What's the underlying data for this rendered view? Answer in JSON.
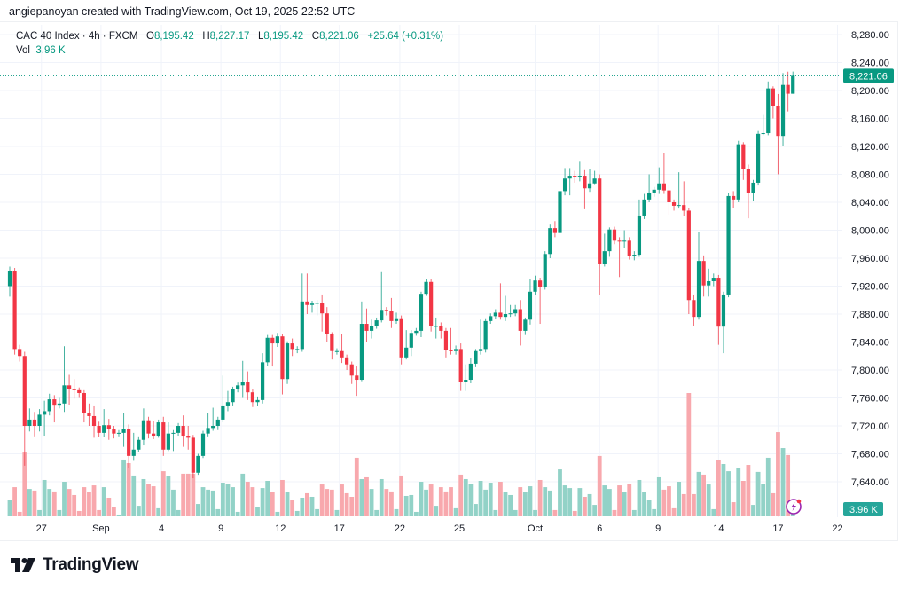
{
  "header": {
    "credit": "angiepanoyan created with TradingView.com, Oct 19, 2025 22:52 UTC",
    "symbol": "CAC 40 Index · 4h · FXCM",
    "o_label": "O",
    "o_value": "8,195.42",
    "h_label": "H",
    "h_value": "8,227.17",
    "l_label": "L",
    "l_value": "8,195.42",
    "c_label": "C",
    "c_value": "8,221.06",
    "change": "+25.64 (+0.31%)",
    "vol_label": "Vol",
    "vol_value": "3.96 K"
  },
  "footer": {
    "brand": "TradingView",
    "logo_icon": "tradingview-logo-icon"
  },
  "colors": {
    "up": "#089981",
    "down": "#F23645",
    "up_volume": "#92d2c7",
    "down_volume": "#f8a8ad",
    "grid": "#f0f3fa"
  },
  "chart_data": {
    "type": "candlestick",
    "title": "CAC 40 Index · 4h · FXCM",
    "ylim": [
      7600,
      8300
    ],
    "price_ticks": [
      "7,640.00",
      "7,680.00",
      "7,720.00",
      "7,760.00",
      "7,800.00",
      "7,840.00",
      "7,880.00",
      "7,920.00",
      "7,960.00",
      "8,000.00",
      "8,040.00",
      "8,080.00",
      "8,120.00",
      "8,160.00",
      "8,200.00",
      "8,240.00",
      "8,280.00"
    ],
    "price_tick_values": [
      7640,
      7680,
      7720,
      7760,
      7800,
      7840,
      7880,
      7920,
      7960,
      8000,
      8040,
      8080,
      8120,
      8160,
      8200,
      8240,
      8280
    ],
    "x_ticks": [
      {
        "label": "27",
        "index": 6.4
      },
      {
        "label": "Sep",
        "index": 18.4
      },
      {
        "label": "4",
        "index": 30.6
      },
      {
        "label": "9",
        "index": 42.6
      },
      {
        "label": "12",
        "index": 54.6
      },
      {
        "label": "17",
        "index": 66.5
      },
      {
        "label": "22",
        "index": 78.7
      },
      {
        "label": "25",
        "index": 90.7
      },
      {
        "label": "Oct",
        "index": 106
      },
      {
        "label": "6",
        "index": 119
      },
      {
        "label": "9",
        "index": 130.8
      },
      {
        "label": "14",
        "index": 143
      },
      {
        "label": "17",
        "index": 155
      },
      {
        "label": "22",
        "index": 167
      }
    ],
    "last_price": 8221.06,
    "last_price_label": "8,221.06",
    "last_volume_label": "3.96 K",
    "volume_unit": "K",
    "open": [
      7920,
      7942,
      7830,
      7820,
      7720,
      7729,
      7720,
      7736,
      7741,
      7758,
      7749,
      7752,
      7778,
      7773,
      7771,
      7767,
      7738,
      7734,
      7720,
      7710,
      7721,
      7715,
      7709,
      7710,
      7715,
      7677,
      7686,
      7700,
      7728,
      7709,
      7706,
      7725,
      7686,
      7709,
      7710,
      7720,
      7706,
      7703,
      7653,
      7677,
      7709,
      7717,
      7720,
      7729,
      7748,
      7754,
      7773,
      7778,
      7783,
      7768,
      7754,
      7757,
      7811,
      7846,
      7838,
      7848,
      7787,
      7838,
      7830,
      7830,
      7898,
      7893,
      7895,
      7896,
      7881,
      7851,
      7827,
      7827,
      7818,
      7808,
      7792,
      7786,
      7866,
      7856,
      7863,
      7871,
      7886,
      7885,
      7870,
      7874,
      7818,
      7832,
      7853,
      7856,
      7909,
      7926,
      7863,
      7863,
      7856,
      7828,
      7827,
      7830,
      7783,
      7786,
      7809,
      7827,
      7830,
      7870,
      7877,
      7882,
      7876,
      7880,
      7881,
      7887,
      7856,
      7872,
      7912,
      7928,
      7919,
      7966,
      8003,
      7996,
      8056,
      8074,
      8078,
      8077,
      8078,
      8060,
      8067,
      8074,
      7952,
      7970,
      8001,
      7985,
      7984,
      7985,
      7963,
      7965,
      8021,
      8044,
      8054,
      8058,
      8067,
      8057,
      8040,
      8035,
      8036,
      8028,
      7900,
      7876,
      7956,
      7921,
      7927,
      7932,
      7862,
      7908,
      8049,
      8044,
      8123,
      8087,
      8053,
      8068,
      8138,
      8139,
      8203,
      8178,
      8135,
      8208,
      8195.42
    ],
    "high": [
      7948,
      7946,
      7836,
      7826,
      7745,
      7740,
      7744,
      7756,
      7766,
      7764,
      7760,
      7834,
      7793,
      7787,
      7775,
      7771,
      7752,
      7748,
      7726,
      7744,
      7730,
      7720,
      7714,
      7738,
      7722,
      7710,
      7705,
      7745,
      7733,
      7727,
      7729,
      7733,
      7725,
      7714,
      7724,
      7735,
      7720,
      7707,
      7680,
      7713,
      7738,
      7746,
      7733,
      7792,
      7770,
      7776,
      7782,
      7813,
      7798,
      7772,
      7762,
      7824,
      7850,
      7850,
      7853,
      7852,
      7841,
      7845,
      7834,
      7938,
      7938,
      7899,
      7900,
      7908,
      7890,
      7854,
      7831,
      7852,
      7822,
      7812,
      7805,
      7898,
      7888,
      7872,
      7875,
      7940,
      7890,
      7903,
      7882,
      7878,
      7857,
      7857,
      7860,
      7912,
      7930,
      7930,
      7875,
      7868,
      7860,
      7860,
      7835,
      7838,
      7808,
      7817,
      7830,
      7872,
      7874,
      7881,
      7887,
      7924,
      7906,
      7893,
      7893,
      7900,
      7875,
      7930,
      7935,
      7932,
      7970,
      8008,
      8013,
      8060,
      8089,
      8089,
      8085,
      8098,
      8086,
      8087,
      8085,
      8080,
      7995,
      8004,
      8005,
      7990,
      8000,
      7990,
      7970,
      8044,
      8052,
      8080,
      8062,
      8090,
      8111,
      8065,
      8044,
      8083,
      8070,
      8032,
      7908,
      7997,
      7964,
      7945,
      7938,
      7936,
      7912,
      8053,
      8056,
      8128,
      8126,
      8094,
      8072,
      8142,
      8165,
      8213,
      8206,
      8195,
      8225,
      8227,
      8227.17
    ],
    "low": [
      7905,
      7822,
      7812,
      7663,
      7712,
      7705,
      7712,
      7706,
      7735,
      7725,
      7745,
      7740,
      7750,
      7759,
      7760,
      7725,
      7720,
      7703,
      7704,
      7704,
      7700,
      7702,
      7705,
      7690,
      7660,
      7670,
      7682,
      7692,
      7702,
      7701,
      7703,
      7677,
      7684,
      7684,
      7706,
      7690,
      7686,
      7645,
      7650,
      7674,
      7705,
      7713,
      7714,
      7725,
      7741,
      7748,
      7768,
      7760,
      7757,
      7747,
      7748,
      7752,
      7806,
      7805,
      7833,
      7765,
      7780,
      7820,
      7824,
      7826,
      7880,
      7882,
      7878,
      7855,
      7840,
      7815,
      7822,
      7810,
      7800,
      7780,
      7763,
      7784,
      7840,
      7845,
      7859,
      7868,
      7878,
      7860,
      7866,
      7808,
      7815,
      7820,
      7849,
      7847,
      7906,
      7855,
      7845,
      7845,
      7818,
      7822,
      7822,
      7770,
      7770,
      7781,
      7804,
      7822,
      7825,
      7866,
      7873,
      7872,
      7870,
      7876,
      7877,
      7835,
      7850,
      7865,
      7908,
      7866,
      7915,
      7960,
      7990,
      7990,
      8050,
      8050,
      8068,
      8070,
      8030,
      8055,
      8066,
      7908,
      7948,
      7962,
      7980,
      7933,
      7975,
      7958,
      7957,
      7962,
      8016,
      8040,
      8048,
      8052,
      8052,
      8022,
      8028,
      8031,
      8020,
      7880,
      7863,
      7872,
      7905,
      7905,
      7920,
      7836,
      7824,
      7904,
      8032,
      8040,
      8072,
      8017,
      8042,
      8064,
      8136,
      8136,
      8160,
      8080,
      8120,
      8170,
      8195.42
    ],
    "close": [
      7942,
      7830,
      7820,
      7720,
      7729,
      7720,
      7736,
      7741,
      7758,
      7749,
      7752,
      7778,
      7773,
      7771,
      7767,
      7738,
      7734,
      7720,
      7710,
      7721,
      7715,
      7709,
      7710,
      7715,
      7677,
      7686,
      7700,
      7728,
      7709,
      7706,
      7725,
      7686,
      7709,
      7710,
      7720,
      7706,
      7703,
      7653,
      7677,
      7709,
      7717,
      7720,
      7729,
      7748,
      7754,
      7773,
      7778,
      7783,
      7768,
      7754,
      7757,
      7811,
      7846,
      7838,
      7848,
      7787,
      7838,
      7830,
      7830,
      7898,
      7893,
      7895,
      7896,
      7881,
      7851,
      7827,
      7827,
      7818,
      7808,
      7792,
      7786,
      7866,
      7856,
      7863,
      7871,
      7886,
      7885,
      7870,
      7874,
      7818,
      7832,
      7853,
      7856,
      7909,
      7926,
      7863,
      7863,
      7856,
      7828,
      7827,
      7830,
      7783,
      7786,
      7809,
      7827,
      7830,
      7870,
      7877,
      7882,
      7876,
      7880,
      7881,
      7887,
      7856,
      7872,
      7912,
      7928,
      7919,
      7966,
      8003,
      7996,
      8056,
      8074,
      8078,
      8077,
      8078,
      8060,
      8067,
      8074,
      7952,
      7970,
      8001,
      7985,
      7984,
      7985,
      7963,
      7965,
      8021,
      8044,
      8054,
      8058,
      8067,
      8057,
      8040,
      8035,
      8036,
      8028,
      7900,
      7876,
      7956,
      7921,
      7927,
      7932,
      7862,
      7908,
      8049,
      8044,
      8123,
      8087,
      8053,
      8068,
      8138,
      8139,
      8203,
      8178,
      8135,
      8208,
      8195.42,
      8221.06
    ],
    "volume": [
      9.4,
      16.3,
      2.5,
      35.6,
      15.3,
      14.4,
      3.5,
      20.3,
      15.3,
      13.9,
      3.5,
      19.3,
      15.3,
      11.9,
      3.0,
      16.3,
      13.4,
      17.3,
      3.5,
      16.3,
      10.4,
      5.4,
      1.0,
      31.7,
      29.7,
      22.8,
      5.9,
      20.8,
      18.3,
      16.8,
      4.5,
      25.2,
      22.3,
      14.9,
      3.5,
      23.8,
      23.8,
      23.8,
      6.9,
      16.3,
      14.9,
      14.4,
      4.0,
      18.8,
      18.3,
      16.3,
      2.5,
      23.8,
      19.3,
      16.3,
      5.4,
      15.8,
      19.8,
      13.4,
      2.5,
      20.3,
      13.4,
      9.4,
      3.0,
      10.4,
      12.9,
      10.9,
      4.0,
      17.8,
      15.3,
      14.9,
      3.5,
      17.8,
      12.9,
      10.9,
      32.7,
      20.8,
      21.8,
      15.3,
      3.5,
      20.8,
      15.3,
      13.9,
      4.0,
      22.8,
      11.4,
      11.9,
      2.5,
      19.3,
      14.9,
      17.8,
      5.9,
      16.3,
      13.9,
      16.3,
      4.5,
      23.3,
      20.8,
      18.3,
      6.9,
      19.8,
      14.9,
      18.8,
      3.5,
      19.3,
      13.4,
      11.9,
      3.5,
      16.3,
      13.4,
      16.8,
      3.5,
      20.3,
      16.3,
      14.4,
      3.5,
      26.2,
      17.3,
      15.8,
      3.0,
      15.8,
      10.9,
      12.4,
      6.4,
      33.7,
      17.3,
      15.3,
      3.5,
      17.3,
      13.4,
      18.3,
      3.5,
      20.3,
      13.4,
      9.4,
      4.0,
      21.8,
      14.9,
      16.8,
      4.5,
      19.3,
      12.4,
      68.8,
      12.4,
      24.8,
      23.3,
      17.8,
      4.0,
      31.2,
      29.2,
      25.2,
      7.9,
      27.2,
      19.8,
      28.7,
      6.4,
      24.8,
      18.3,
      32.7,
      12.9,
      47.0,
      38.1,
      34.2,
      3.96
    ]
  }
}
